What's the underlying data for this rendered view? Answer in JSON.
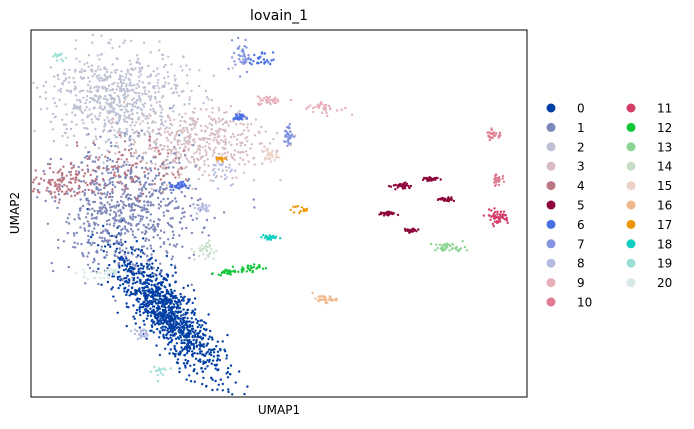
{
  "chart_data": {
    "type": "scatter",
    "title": "lovain_1",
    "xlabel": "UMAP1",
    "ylabel": "UMAP2",
    "ticks": "none",
    "grid": false,
    "legend_placement": "right",
    "legend_columns": 2,
    "point_size": "small",
    "clusters": [
      {
        "name": "0",
        "color": "#023fa5",
        "centers": [
          [
            3.4,
            2.1
          ]
        ],
        "spread": [
          0.9,
          1.1
        ],
        "count": 1100,
        "shape": "diagonal"
      },
      {
        "name": "1",
        "color": "#7d87b9",
        "centers": [
          [
            2.4,
            5.1
          ]
        ],
        "spread": [
          0.9,
          0.9
        ],
        "count": 700
      },
      {
        "name": "2",
        "color": "#bec1d4",
        "centers": [
          [
            2.1,
            8.4
          ]
        ],
        "spread": [
          0.9,
          0.7
        ],
        "count": 650
      },
      {
        "name": "3",
        "color": "#d6bcc0",
        "centers": [
          [
            4.2,
            7.1
          ]
        ],
        "spread": [
          0.9,
          0.5
        ],
        "count": 420
      },
      {
        "name": "4",
        "color": "#bb7784",
        "centers": [
          [
            2.3,
            6.3
          ],
          [
            0.8,
            5.9
          ]
        ],
        "spread": [
          0.8,
          0.4
        ],
        "count": 220
      },
      {
        "name": "5",
        "color": "#8e063b",
        "centers": [
          [
            9.4,
            5.8
          ],
          [
            10.1,
            6.0
          ],
          [
            9.0,
            5.0
          ],
          [
            9.6,
            4.5
          ],
          [
            10.5,
            5.4
          ]
        ],
        "spread": [
          0.15,
          0.05
        ],
        "count": 160
      },
      {
        "name": "6",
        "color": "#4a6fe3",
        "centers": [
          [
            5.8,
            9.5
          ],
          [
            5.2,
            7.8
          ],
          [
            3.7,
            5.8
          ]
        ],
        "spread": [
          0.15,
          0.1
        ],
        "count": 90
      },
      {
        "name": "7",
        "color": "#8595e1",
        "centers": [
          [
            5.3,
            9.6
          ],
          [
            6.5,
            7.3
          ]
        ],
        "spread": [
          0.1,
          0.25
        ],
        "count": 80
      },
      {
        "name": "8",
        "color": "#b5bbe3",
        "centers": [
          [
            4.8,
            6.2
          ],
          [
            4.3,
            5.2
          ],
          [
            2.8,
            1.5
          ]
        ],
        "spread": [
          0.2,
          0.2
        ],
        "count": 70
      },
      {
        "name": "9",
        "color": "#e6afb9",
        "centers": [
          [
            7.4,
            8.1
          ],
          [
            6.0,
            8.3
          ]
        ],
        "spread": [
          0.25,
          0.1
        ],
        "count": 70
      },
      {
        "name": "10",
        "color": "#e07b91",
        "centers": [
          [
            11.7,
            7.3
          ],
          [
            11.8,
            6.0
          ]
        ],
        "spread": [
          0.1,
          0.15
        ],
        "count": 50
      },
      {
        "name": "11",
        "color": "#d33f6a",
        "centers": [
          [
            11.8,
            4.9
          ]
        ],
        "spread": [
          0.15,
          0.1
        ],
        "count": 60
      },
      {
        "name": "12",
        "color": "#11c638",
        "centers": [
          [
            5.5,
            3.4
          ],
          [
            4.9,
            3.3
          ]
        ],
        "spread": [
          0.2,
          0.06
        ],
        "count": 55
      },
      {
        "name": "13",
        "color": "#8dd593",
        "centers": [
          [
            10.6,
            4.0
          ]
        ],
        "spread": [
          0.2,
          0.07
        ],
        "count": 40
      },
      {
        "name": "14",
        "color": "#c6dec7",
        "centers": [
          [
            4.4,
            3.9
          ]
        ],
        "spread": [
          0.15,
          0.15
        ],
        "count": 30
      },
      {
        "name": "15",
        "color": "#ead3c6",
        "centers": [
          [
            6.0,
            6.7
          ]
        ],
        "spread": [
          0.1,
          0.1
        ],
        "count": 30
      },
      {
        "name": "16",
        "color": "#f0b98d",
        "centers": [
          [
            7.4,
            2.5
          ]
        ],
        "spread": [
          0.15,
          0.05
        ],
        "count": 30
      },
      {
        "name": "17",
        "color": "#ef9708",
        "centers": [
          [
            6.8,
            5.1
          ],
          [
            4.8,
            6.6
          ]
        ],
        "spread": [
          0.12,
          0.05
        ],
        "count": 28
      },
      {
        "name": "18",
        "color": "#0fcfc0",
        "centers": [
          [
            6.0,
            4.3
          ]
        ],
        "spread": [
          0.1,
          0.05
        ],
        "count": 28
      },
      {
        "name": "19",
        "color": "#9cded6",
        "centers": [
          [
            3.2,
            0.4
          ],
          [
            0.6,
            9.6
          ]
        ],
        "spread": [
          0.12,
          0.1
        ],
        "count": 28
      },
      {
        "name": "20",
        "color": "#d5eae7",
        "centers": [
          [
            1.4,
            3.2
          ],
          [
            2.0,
            3.3
          ]
        ],
        "spread": [
          0.3,
          0.1
        ],
        "count": 30
      }
    ],
    "xlim": [
      0,
      12.5
    ],
    "ylim": [
      -0.3,
      10.3
    ]
  }
}
